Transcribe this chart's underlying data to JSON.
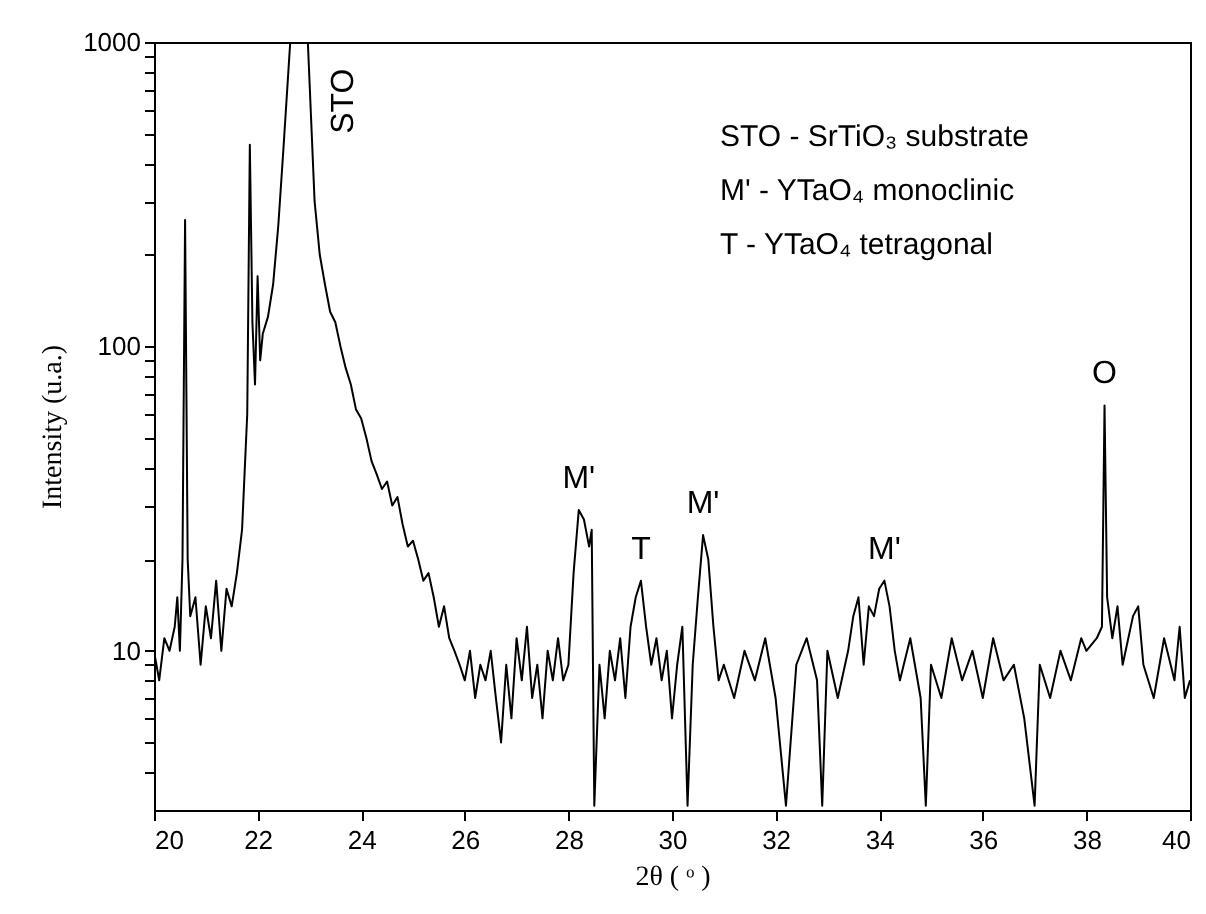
{
  "chart_data": {
    "type": "line",
    "xlabel": "2θ ( ᵒ )",
    "ylabel": "Intensity (u.a.)",
    "xlim": [
      20,
      40
    ],
    "ylim": [
      3,
      1000
    ],
    "log": "y",
    "grid": false,
    "marker": "none",
    "line_style": "solid",
    "xticks": [
      20,
      22,
      24,
      26,
      28,
      30,
      32,
      34,
      36,
      38,
      40
    ],
    "yticks": [
      {
        "value": 4,
        "label": null
      },
      {
        "value": 5,
        "label": null
      },
      {
        "value": 6,
        "label": null
      },
      {
        "value": 7,
        "label": null
      },
      {
        "value": 8,
        "label": null
      },
      {
        "value": 9,
        "label": null
      },
      10,
      {
        "value": 20,
        "label": null
      },
      {
        "value": 30,
        "label": null
      },
      {
        "value": 40,
        "label": null
      },
      {
        "value": 50,
        "label": null
      },
      {
        "value": 60,
        "label": null
      },
      {
        "value": 70,
        "label": null
      },
      {
        "value": 80,
        "label": null
      },
      {
        "value": 90,
        "label": null
      },
      100,
      {
        "value": 200,
        "label": null
      },
      {
        "value": 300,
        "label": null
      },
      {
        "value": 400,
        "label": null
      },
      {
        "value": 500,
        "label": null
      },
      {
        "value": 600,
        "label": null
      },
      {
        "value": 700,
        "label": null
      },
      {
        "value": 800,
        "label": null
      },
      {
        "value": 900,
        "label": null
      },
      1000
    ],
    "series": [
      {
        "color": "#000000",
        "x": [
          20.0,
          20.1,
          20.2,
          20.3,
          20.4,
          20.45,
          20.5,
          20.55,
          20.6,
          20.65,
          20.7,
          20.8,
          20.9,
          21.0,
          21.1,
          21.2,
          21.3,
          21.4,
          21.5,
          21.6,
          21.7,
          21.8,
          21.85,
          21.9,
          21.95,
          22.0,
          22.05,
          22.1,
          22.2,
          22.3,
          22.4,
          22.5,
          22.63,
          22.8,
          22.97,
          23.1,
          23.2,
          23.3,
          23.4,
          23.5,
          23.6,
          23.7,
          23.8,
          23.9,
          24.0,
          24.1,
          24.2,
          24.3,
          24.4,
          24.5,
          24.6,
          24.7,
          24.8,
          24.9,
          25.0,
          25.1,
          25.2,
          25.3,
          25.4,
          25.5,
          25.6,
          25.7,
          25.8,
          25.9,
          26.0,
          26.1,
          26.2,
          26.3,
          26.4,
          26.5,
          26.6,
          26.7,
          26.8,
          26.9,
          27.0,
          27.1,
          27.2,
          27.3,
          27.4,
          27.5,
          27.6,
          27.7,
          27.8,
          27.9,
          28.0,
          28.1,
          28.2,
          28.3,
          28.4,
          28.45,
          28.5,
          28.6,
          28.7,
          28.8,
          28.9,
          29.0,
          29.1,
          29.2,
          29.3,
          29.4,
          29.5,
          29.6,
          29.7,
          29.8,
          29.9,
          30.0,
          30.1,
          30.2,
          30.3,
          30.4,
          30.5,
          30.6,
          30.7,
          30.8,
          30.9,
          31.0,
          31.2,
          31.4,
          31.6,
          31.8,
          32.0,
          32.2,
          32.4,
          32.6,
          32.8,
          32.9,
          33.0,
          33.2,
          33.4,
          33.5,
          33.6,
          33.7,
          33.8,
          33.9,
          34.0,
          34.1,
          34.2,
          34.3,
          34.4,
          34.6,
          34.8,
          34.9,
          35.0,
          35.2,
          35.4,
          35.6,
          35.8,
          36.0,
          36.2,
          36.4,
          36.6,
          36.8,
          37.0,
          37.1,
          37.3,
          37.5,
          37.7,
          37.9,
          38.0,
          38.2,
          38.3,
          38.35,
          38.4,
          38.5,
          38.6,
          38.7,
          38.9,
          39.0,
          39.1,
          39.3,
          39.5,
          39.7,
          39.8,
          39.9,
          40.0
        ],
        "values": [
          10,
          8,
          11,
          10,
          12,
          15,
          10,
          20,
          260,
          20,
          13,
          15,
          9,
          14,
          11,
          17,
          10,
          16,
          14,
          18,
          25,
          60,
          460,
          120,
          75,
          170,
          90,
          110,
          125,
          160,
          250,
          450,
          1000,
          null,
          1000,
          300,
          200,
          160,
          130,
          120,
          100,
          85,
          75,
          62,
          58,
          50,
          42,
          38,
          34,
          36,
          30,
          32,
          26,
          22,
          23,
          20,
          17,
          18,
          15,
          12,
          14,
          11,
          10,
          9,
          8,
          10,
          7,
          9,
          8,
          10,
          7,
          5,
          9,
          6,
          11,
          8,
          12,
          7,
          9,
          6,
          10,
          8,
          11,
          8,
          9,
          18,
          29,
          27,
          22,
          25,
          3.1,
          9,
          6,
          10,
          8,
          11,
          7,
          12,
          15,
          17,
          12,
          9,
          11,
          8,
          10,
          6,
          9,
          12,
          3.1,
          9,
          15,
          24,
          20,
          12,
          8,
          9,
          7,
          10,
          8,
          11,
          7,
          3.1,
          9,
          11,
          8,
          3.1,
          10,
          7,
          10,
          13,
          15,
          9,
          14,
          13,
          16,
          17,
          14,
          10,
          8,
          11,
          7,
          3.1,
          9,
          7,
          11,
          8,
          10,
          7,
          11,
          8,
          9,
          6,
          3.1,
          9,
          7,
          10,
          8,
          11,
          10,
          11,
          12,
          64,
          15,
          11,
          14,
          9,
          13,
          14,
          9,
          7,
          11,
          8,
          12,
          7,
          8
        ]
      }
    ],
    "annotations": [
      {
        "text": "STO",
        "x": 23.1,
        "y": 300
      },
      {
        "text": "M'",
        "x": 28.2,
        "y": 29
      },
      {
        "text": "T",
        "x": 29.4,
        "y": 17
      },
      {
        "text": "M'",
        "x": 30.6,
        "y": 24
      },
      {
        "text": "M'",
        "x": 34.1,
        "y": 17
      },
      {
        "text": "O",
        "x": 38.35,
        "y": 64
      },
      "STO - SrTiO₃ substrate",
      "M' - YTaO₄ monoclinic",
      "T -  YTaO₄ tetragonal"
    ]
  }
}
